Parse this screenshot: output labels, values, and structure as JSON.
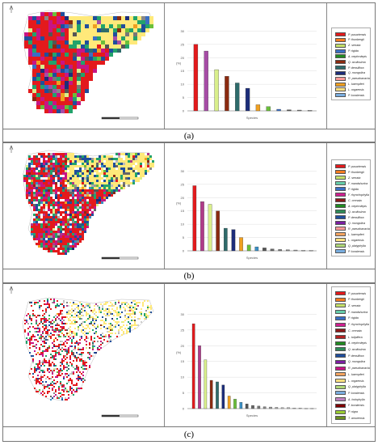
{
  "panels": [
    {
      "caption": "(a)",
      "species": [
        {
          "name": "P. pusariensis",
          "color": "#e31a1c",
          "value": 25
        },
        {
          "name": "P. thunbergii",
          "color": "#f47c20",
          "value": 22.5
        },
        {
          "name": "Z. serrata",
          "color": "#c5e06a",
          "value": 15.5
        },
        {
          "name": "P. rigida",
          "color": "#3a6fc4",
          "value": 0
        },
        {
          "name": "A. nephrolepis",
          "color": "#228b22",
          "value": 0
        },
        {
          "name": "Q. aculissima",
          "color": "#8b2a10",
          "value": 13
        },
        {
          "name": "P. densiflora",
          "color": "#2e6b6b",
          "value": 10.5
        },
        {
          "name": "Q. mongolica",
          "color": "#1c2d7a",
          "value": 8.5
        },
        {
          "name": "R. pseudoacacia",
          "color": "#ff9999",
          "value": 0
        },
        {
          "name": "L. kaempferi",
          "color": "#f0a020",
          "value": 2.3
        },
        {
          "name": "L. orgaensis",
          "color": "#ffe080",
          "value": 0
        },
        {
          "name": "P. koraiensis",
          "color": "#7aaee0",
          "value": 0
        }
      ],
      "values_ordered": [
        25,
        22.5,
        15.5,
        13,
        10.5,
        8.5,
        2.3,
        1.6,
        0.6,
        0.4,
        0.3,
        0.2
      ],
      "colors_ordered": [
        "#e31a1c",
        "#a64ca6",
        "#d9ef8b",
        "#8b2a10",
        "#2e6b6b",
        "#1c2d7a",
        "#f0a020",
        "#6abf3a",
        "#3a6fc4",
        "#555555",
        "#777777",
        "#888888"
      ],
      "ylim": [
        0,
        35
      ],
      "yticks": [
        "0",
        "5",
        "10",
        "15",
        "20",
        "25",
        "30"
      ],
      "ylabel": "(%)",
      "xlabel": "Species"
    },
    {
      "caption": "(b)",
      "species": [
        {
          "name": "P. pusariensis",
          "color": "#e31a1c",
          "value": 24.5
        },
        {
          "name": "P. thunbergii",
          "color": "#f47c20",
          "value": 0
        },
        {
          "name": "Z. serrata",
          "color": "#c5e06a",
          "value": 0
        },
        {
          "name": "F. mandshurica",
          "color": "#66cdaa",
          "value": 0
        },
        {
          "name": "P. rigida",
          "color": "#3a6fc4",
          "value": 0
        },
        {
          "name": "F. rhynchophylla",
          "color": "#d02090",
          "value": 0
        },
        {
          "name": "C. crenata",
          "color": "#8b1a1a",
          "value": 0
        },
        {
          "name": "A. nephrolepis",
          "color": "#228b22",
          "value": 0
        },
        {
          "name": "Q. aculissima",
          "color": "#2e8b57",
          "value": 0
        },
        {
          "name": "P. densiflora",
          "color": "#1f4e9c",
          "value": 0
        },
        {
          "name": "Q. mongolica",
          "color": "#7b1fa2",
          "value": 0
        },
        {
          "name": "R. pseudoacacia",
          "color": "#ff9999",
          "value": 0
        },
        {
          "name": "L. kaempferi",
          "color": "#f4a460",
          "value": 0
        },
        {
          "name": "L. orgaensis",
          "color": "#ffe080",
          "value": 0
        },
        {
          "name": "Q. platyphylla",
          "color": "#b0d878",
          "value": 0
        },
        {
          "name": "P. koraiensis",
          "color": "#7aaee0",
          "value": 0
        }
      ],
      "values_ordered": [
        24.5,
        18.5,
        17.5,
        15,
        8.5,
        8,
        5,
        2.2,
        1.5,
        1.1,
        0.7,
        0.5,
        0.4,
        0.3,
        0.2,
        0.2
      ],
      "colors_ordered": [
        "#e31a1c",
        "#b03a8a",
        "#d9ef8b",
        "#8b2a10",
        "#2e6b6b",
        "#1c2d7a",
        "#f0a020",
        "#6abf3a",
        "#3a8fc4",
        "#555555",
        "#666666",
        "#777777",
        "#888888",
        "#999999",
        "#aaaaaa",
        "#bbbbbb"
      ],
      "ylim": [
        0,
        35
      ],
      "yticks": [
        "0",
        "5",
        "10",
        "15",
        "20",
        "25",
        "30"
      ],
      "ylabel": "(%)",
      "xlabel": "Species"
    },
    {
      "caption": "(c)",
      "species": [
        {
          "name": "P. pusariensis",
          "color": "#e31a1c",
          "value": 0
        },
        {
          "name": "P. thunbergii",
          "color": "#f47c20",
          "value": 0
        },
        {
          "name": "Z. serrata",
          "color": "#c5e06a",
          "value": 0
        },
        {
          "name": "F. mandshurica",
          "color": "#66cdaa",
          "value": 0
        },
        {
          "name": "P. rigida",
          "color": "#3a6fc4",
          "value": 0
        },
        {
          "name": "F. rhynchophylla",
          "color": "#d02090",
          "value": 0
        },
        {
          "name": "C. crenata",
          "color": "#8b1a1a",
          "value": 0
        },
        {
          "name": "L. tulipifera",
          "color": "#b22222",
          "value": 0
        },
        {
          "name": "A. nephrolepis",
          "color": "#228b22",
          "value": 0
        },
        {
          "name": "Q. aculissima",
          "color": "#2e8b57",
          "value": 0
        },
        {
          "name": "P. densiflora",
          "color": "#1f4e9c",
          "value": 0
        },
        {
          "name": "Q. mongolica",
          "color": "#7b1fa2",
          "value": 0
        },
        {
          "name": "R. pseudoacacia",
          "color": "#c71585",
          "value": 0
        },
        {
          "name": "L. kaempferi",
          "color": "#f4a460",
          "value": 0
        },
        {
          "name": "L. orgaensis",
          "color": "#ffe080",
          "value": 0
        },
        {
          "name": "Q. platyphylla",
          "color": "#b0d878",
          "value": 0
        },
        {
          "name": "P. koraiensis",
          "color": "#7aaee0",
          "value": 0
        },
        {
          "name": "A. holophylla",
          "color": "#c080c0",
          "value": 0
        },
        {
          "name": "F. koraiensis",
          "color": "#800000",
          "value": 0
        },
        {
          "name": "P. nigra",
          "color": "#9acd32",
          "value": 0
        },
        {
          "name": "T. amurensis",
          "color": "#6b8e23",
          "value": 0
        }
      ],
      "values_ordered": [
        27,
        20,
        15.5,
        9,
        8.5,
        7.5,
        4,
        3,
        2,
        1.5,
        1,
        0.8,
        0.6,
        0.5,
        0.4,
        0.3,
        0.3,
        0.2,
        0.2,
        0.1,
        0.1
      ],
      "colors_ordered": [
        "#e31a1c",
        "#b03a8a",
        "#d9ef8b",
        "#8b2a10",
        "#2e6b6b",
        "#1c2d7a",
        "#f0a020",
        "#6abf3a",
        "#3a8fc4",
        "#555555",
        "#666666",
        "#777777",
        "#888888",
        "#999999",
        "#aaaaaa",
        "#bbbbbb",
        "#bbbbbb",
        "#cccccc",
        "#cccccc",
        "#cccccc",
        "#cccccc"
      ],
      "ylim": [
        0,
        35
      ],
      "yticks": [
        "0",
        "5",
        "10",
        "15",
        "20",
        "25",
        "30"
      ],
      "ylabel": "(%)",
      "xlabel": "Species"
    }
  ],
  "chart_data": [
    {
      "type": "bar",
      "categories": [
        "P. pusariensis",
        "P. thunbergii",
        "Z. serrata",
        "Q. aculissima",
        "P. densiflora",
        "Q. mongolica",
        "L. kaempferi",
        "A. nephrolepis",
        "P. rigida",
        "R. pseudoacacia",
        "L. orgaensis",
        "P. koraiensis"
      ],
      "values": [
        25,
        22.5,
        15.5,
        13,
        10.5,
        8.5,
        2.3,
        1.6,
        0.6,
        0.4,
        0.3,
        0.2
      ],
      "ylabel": "(%)",
      "xlabel": "Species",
      "ylim": [
        0,
        35
      ]
    },
    {
      "type": "bar",
      "categories": [
        "P. pusariensis",
        "P. thunbergii",
        "Z. serrata",
        "F. mandshurica",
        "P. rigida",
        "F. rhynchophylla",
        "C. crenata",
        "A. nephrolepis",
        "Q. aculissima",
        "P. densiflora",
        "Q. mongolica",
        "R. pseudoacacia",
        "L. kaempferi",
        "L. orgaensis",
        "Q. platyphylla",
        "P. koraiensis"
      ],
      "values": [
        24.5,
        18.5,
        17.5,
        15,
        8.5,
        8,
        5,
        2.2,
        1.5,
        1.1,
        0.7,
        0.5,
        0.4,
        0.3,
        0.2,
        0.2
      ],
      "ylabel": "(%)",
      "xlabel": "Species",
      "ylim": [
        0,
        35
      ]
    },
    {
      "type": "bar",
      "categories": [
        "P. pusariensis",
        "P. thunbergii",
        "Z. serrata",
        "F. mandshurica",
        "P. rigida",
        "F. rhynchophylla",
        "C. crenata",
        "L. tulipifera",
        "A. nephrolepis",
        "Q. aculissima",
        "P. densiflora",
        "Q. mongolica",
        "R. pseudoacacia",
        "L. kaempferi",
        "L. orgaensis",
        "Q. platyphylla",
        "P. koraiensis",
        "A. holophylla",
        "F. koraiensis",
        "P. nigra",
        "T. amurensis"
      ],
      "values": [
        27,
        20,
        15.5,
        9,
        8.5,
        7.5,
        4,
        3,
        2,
        1.5,
        1,
        0.8,
        0.6,
        0.5,
        0.4,
        0.3,
        0.3,
        0.2,
        0.2,
        0.1,
        0.1
      ],
      "ylabel": "(%)",
      "xlabel": "Species",
      "ylim": [
        0,
        35
      ]
    }
  ]
}
